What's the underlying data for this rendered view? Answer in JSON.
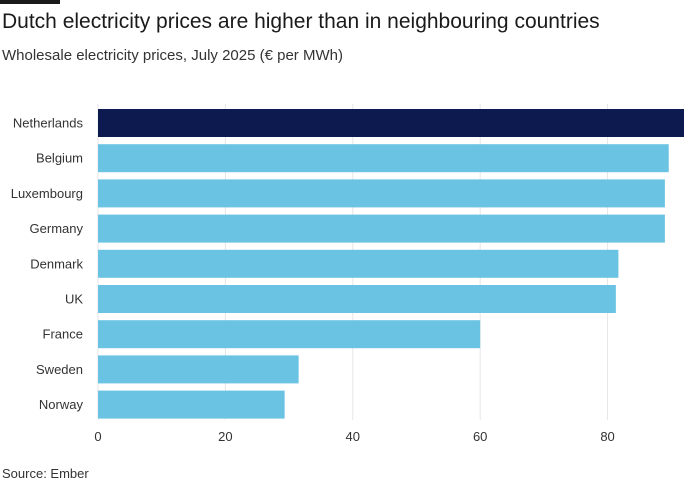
{
  "title": "Dutch electricity prices are higher than in neighbouring countries",
  "subtitle": "Wholesale electricity prices, July 2025 (€ per MWh)",
  "source": "Source: Ember",
  "colors": {
    "highlight": "#0d1a4f",
    "bar": "#6ac3e3",
    "grid": "#e6e6e6"
  },
  "chart_data": {
    "type": "bar",
    "orientation": "horizontal",
    "categories": [
      "Netherlands",
      "Belgium",
      "Luxembourg",
      "Germany",
      "Denmark",
      "UK",
      "France",
      "Sweden",
      "Norway"
    ],
    "values": [
      92,
      89.6,
      89,
      89,
      81.7,
      81.3,
      60,
      31.5,
      29.3
    ],
    "highlight": "Netherlands",
    "xlim": [
      0,
      92
    ],
    "xticks": [
      0,
      20,
      40,
      60,
      80
    ],
    "grid": true
  }
}
